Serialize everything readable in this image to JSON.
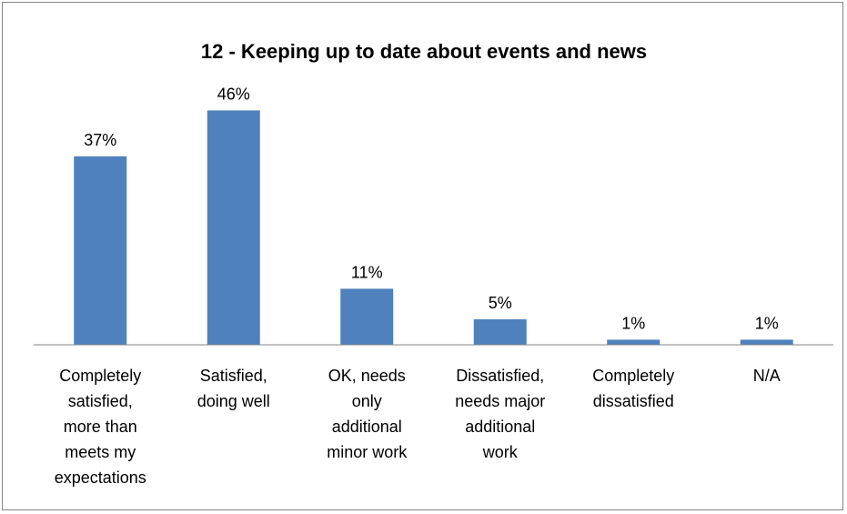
{
  "chart_data": {
    "type": "bar",
    "title": "12 - Keeping up to date about events and news",
    "categories": [
      [
        "Completely",
        "satisfied,",
        "more than",
        "meets my",
        "expectations"
      ],
      [
        "Satisfied,",
        "doing well"
      ],
      [
        "OK, needs",
        "only",
        "additional",
        "minor work"
      ],
      [
        "Dissatisfied,",
        "needs major",
        "additional",
        "work"
      ],
      [
        "Completely",
        "dissatisfied"
      ],
      [
        "N/A"
      ]
    ],
    "values": [
      37,
      46,
      11,
      5,
      1,
      1
    ],
    "value_labels": [
      "37%",
      "46%",
      "11%",
      "5%",
      "1%",
      "1%"
    ],
    "ylim": [
      0,
      50
    ],
    "grid": false,
    "legend": "none",
    "bar_color": "#4F81BD"
  }
}
